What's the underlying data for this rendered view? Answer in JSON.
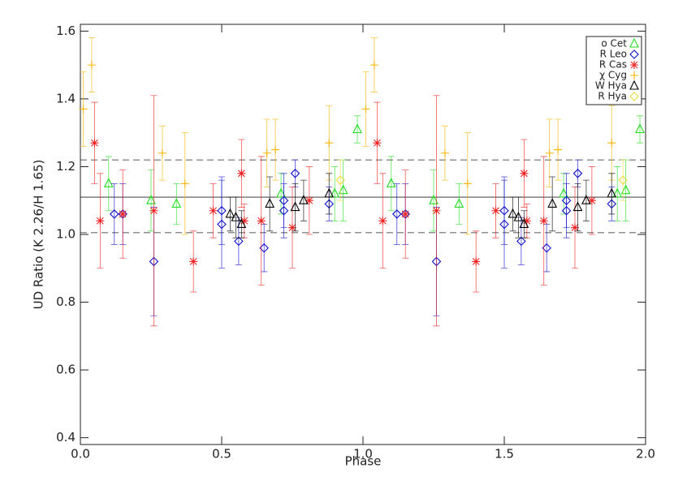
{
  "chart_data": {
    "type": "scatter",
    "x_label": "Phase",
    "y_label": "UD Ratio (K 2.26/H 1.65)",
    "xlim": [
      0,
      2
    ],
    "ylim": [
      0.38,
      1.62
    ],
    "xticks": [
      {
        "value": 0,
        "label": "0.0"
      },
      {
        "value": 0.5,
        "label": "0.5"
      },
      {
        "value": 1,
        "label": "1.0"
      },
      {
        "value": 1.5,
        "label": "1.5"
      },
      {
        "value": 2,
        "label": "2.0"
      }
    ],
    "yticks": [
      0.4,
      0.6,
      0.8,
      {
        "value": 1,
        "label": "1.0"
      },
      1.2,
      1.4,
      1.6
    ],
    "hlines": [
      {
        "value": 1.22,
        "dashed": true
      },
      {
        "value": 1.11,
        "dashed": false
      },
      {
        "value": 1.005,
        "dashed": true
      }
    ],
    "legend": "upper right",
    "series": [
      {
        "name": "o Cet",
        "color": "#22dd22",
        "marker": "triangle",
        "x": [
          0.1,
          0.25,
          0.34,
          0.71,
          0.9,
          0.93,
          0.98,
          1.1,
          1.25,
          1.34,
          1.71,
          1.9,
          1.93,
          1.98
        ],
        "values": [
          1.15,
          1.1,
          1.09,
          1.12,
          1.12,
          1.13,
          1.31,
          1.15,
          1.1,
          1.09,
          1.12,
          1.12,
          1.13,
          1.31
        ],
        "errors": [
          0.08,
          0.09,
          0.06,
          0.06,
          0.08,
          0.09,
          0.04,
          0.08,
          0.09,
          0.06,
          0.06,
          0.08,
          0.09,
          0.04
        ]
      },
      {
        "name": "R Leo",
        "color": "#1010cc",
        "marker": "diamond",
        "x": [
          0.12,
          0.15,
          0.26,
          0.5,
          0.5,
          0.56,
          0.65,
          0.72,
          0.72,
          0.76,
          0.88,
          1.12,
          1.15,
          1.26,
          1.5,
          1.5,
          1.56,
          1.65,
          1.72,
          1.72,
          1.76,
          1.88
        ],
        "values": [
          1.06,
          1.06,
          0.92,
          1.03,
          1.07,
          0.98,
          0.96,
          1.07,
          1.1,
          1.18,
          1.09,
          1.06,
          1.06,
          0.92,
          1.03,
          1.07,
          0.98,
          0.96,
          1.07,
          1.1,
          1.18,
          1.09
        ],
        "errors": [
          0.09,
          0.09,
          0.16,
          0.13,
          0.1,
          0.07,
          0.07,
          0.08,
          0.08,
          0.04,
          0.05,
          0.09,
          0.09,
          0.16,
          0.13,
          0.1,
          0.07,
          0.07,
          0.08,
          0.08,
          0.04,
          0.05
        ]
      },
      {
        "name": "R Cas",
        "color": "#ee2222",
        "marker": "asterisk",
        "x": [
          0.05,
          0.07,
          0.15,
          0.26,
          0.4,
          0.47,
          0.57,
          0.58,
          0.64,
          0.75,
          0.81,
          1.05,
          1.07,
          1.15,
          1.26,
          1.4,
          1.47,
          1.57,
          1.58,
          1.64,
          1.75,
          1.81
        ],
        "values": [
          1.27,
          1.04,
          1.06,
          1.07,
          0.92,
          1.07,
          1.18,
          1.04,
          1.04,
          1.02,
          1.1,
          1.27,
          1.04,
          1.06,
          1.07,
          0.92,
          1.07,
          1.18,
          1.04,
          1.04,
          1.02,
          1.1
        ],
        "errors": [
          0.12,
          0.14,
          0.13,
          0.34,
          0.09,
          0.08,
          0.1,
          0.05,
          0.19,
          0.12,
          0.1,
          0.12,
          0.14,
          0.13,
          0.34,
          0.09,
          0.08,
          0.1,
          0.05,
          0.19,
          0.12,
          0.1
        ]
      },
      {
        "name": "χ Cyg",
        "color": "#f5b400",
        "marker": "plus",
        "x": [
          0.01,
          0.04,
          0.29,
          0.37,
          0.66,
          0.69,
          0.88,
          1.01,
          1.04,
          1.29,
          1.37,
          1.66,
          1.69,
          1.88
        ],
        "values": [
          1.37,
          1.5,
          1.24,
          1.15,
          1.24,
          1.25,
          1.27,
          1.37,
          1.5,
          1.24,
          1.15,
          1.24,
          1.25,
          1.27
        ],
        "errors": [
          0.11,
          0.08,
          0.08,
          0.15,
          0.1,
          0.09,
          0.11,
          0.11,
          0.08,
          0.08,
          0.15,
          0.1,
          0.09,
          0.11
        ]
      },
      {
        "name": "W Hya",
        "color": "#000000",
        "marker": "triangle",
        "x": [
          0.53,
          0.55,
          0.57,
          0.67,
          0.76,
          0.79,
          0.88,
          1.53,
          1.55,
          1.57,
          1.67,
          1.76,
          1.79,
          1.88
        ],
        "values": [
          1.06,
          1.05,
          1.03,
          1.09,
          1.08,
          1.1,
          1.12,
          1.06,
          1.05,
          1.03,
          1.09,
          1.08,
          1.1,
          1.12
        ],
        "errors": [
          0.05,
          0.06,
          0.04,
          0.08,
          0.07,
          0.06,
          0.06,
          0.05,
          0.06,
          0.04,
          0.08,
          0.07,
          0.06,
          0.06
        ]
      },
      {
        "name": "R Hya",
        "color": "#ecdc3c",
        "marker": "diamond",
        "x": [
          0.92,
          1.92
        ],
        "values": [
          1.16,
          1.16
        ],
        "errors": [
          0.06,
          0.06
        ]
      }
    ]
  }
}
